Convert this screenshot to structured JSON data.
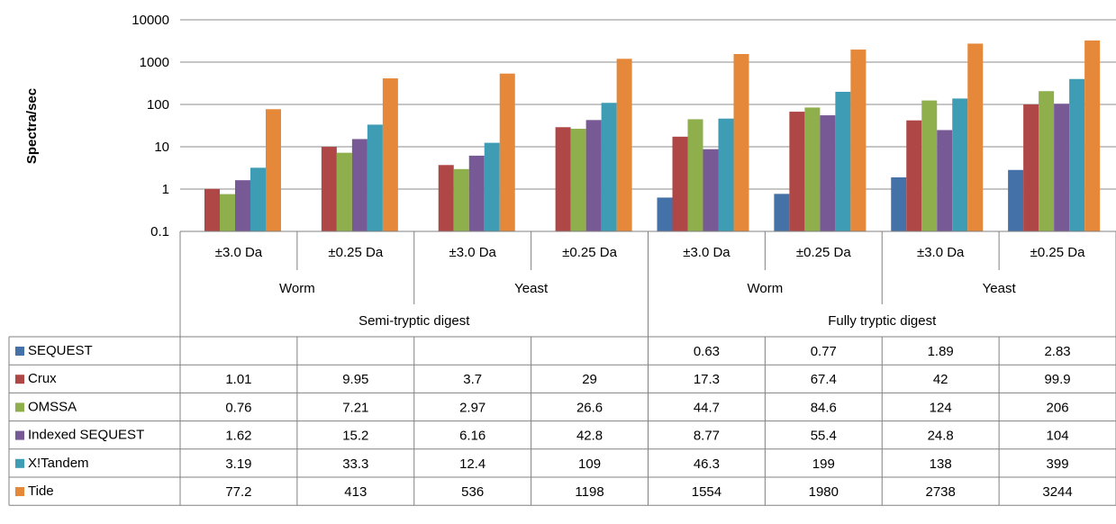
{
  "chart_data": {
    "type": "bar",
    "ylabel": "Spectra/sec",
    "yscale": "log",
    "ylim": [
      0.1,
      10000
    ],
    "yticks": [
      "10000",
      "1000",
      "100",
      "10",
      "1",
      "0.1"
    ],
    "grid": true,
    "legend": "table-left",
    "categories": [
      "±3.0 Da",
      "±0.25 Da",
      "±3.0 Da",
      "±0.25 Da",
      "±3.0 Da",
      "±0.25 Da",
      "±3.0 Da",
      "±0.25 Da"
    ],
    "organisms": [
      "Worm",
      "Yeast",
      "Worm",
      "Yeast"
    ],
    "digests": [
      "Semi-tryptic digest",
      "Fully tryptic digest"
    ],
    "series": [
      {
        "name": "SEQUEST",
        "color": "#4472A8",
        "values": [
          null,
          null,
          null,
          null,
          0.63,
          0.77,
          1.89,
          2.83
        ],
        "labels": [
          "",
          "",
          "",
          "",
          "0.63",
          "0.77",
          "1.89",
          "2.83"
        ]
      },
      {
        "name": "Crux",
        "color": "#B04747",
        "values": [
          1.01,
          9.95,
          3.7,
          29,
          17.3,
          67.4,
          42,
          99.9
        ],
        "labels": [
          "1.01",
          "9.95",
          "3.7",
          "29",
          "17.3",
          "67.4",
          "42",
          "99.9"
        ]
      },
      {
        "name": "OMSSA",
        "color": "#8FAE4C",
        "values": [
          0.76,
          7.21,
          2.97,
          26.6,
          44.7,
          84.6,
          124,
          206
        ],
        "labels": [
          "0.76",
          "7.21",
          "2.97",
          "26.6",
          "44.7",
          "84.6",
          "124",
          "206"
        ]
      },
      {
        "name": "Indexed SEQUEST",
        "color": "#775A95",
        "values": [
          1.62,
          15.2,
          6.16,
          42.8,
          8.77,
          55.4,
          24.8,
          104
        ],
        "labels": [
          "1.62",
          "15.2",
          "6.16",
          "42.8",
          "8.77",
          "55.4",
          "24.8",
          "104"
        ]
      },
      {
        "name": "X!Tandem",
        "color": "#3E9CB4",
        "values": [
          3.19,
          33.3,
          12.4,
          109,
          46.3,
          199,
          138,
          399
        ],
        "labels": [
          "3.19",
          "33.3",
          "12.4",
          "109",
          "46.3",
          "199",
          "138",
          "399"
        ]
      },
      {
        "name": "Tide",
        "color": "#E5883A",
        "values": [
          77.2,
          413,
          536,
          1198,
          1554,
          1980,
          2738,
          3244
        ],
        "labels": [
          "77.2",
          "413",
          "536",
          "1198",
          "1554",
          "1980",
          "2738",
          "3244"
        ]
      }
    ]
  }
}
